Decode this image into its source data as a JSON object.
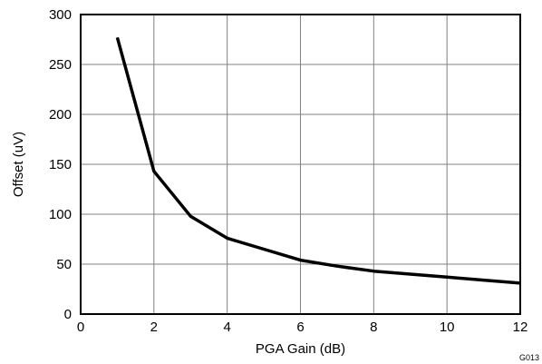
{
  "chart_data": {
    "type": "line",
    "title": "",
    "xlabel": "PGA Gain (dB)",
    "ylabel": "Offset (uV)",
    "xlim": [
      0,
      12
    ],
    "ylim": [
      0,
      300
    ],
    "x_ticks": [
      0,
      2,
      4,
      6,
      8,
      10,
      12
    ],
    "y_ticks": [
      0,
      50,
      100,
      150,
      200,
      250,
      300
    ],
    "grid": true,
    "series": [
      {
        "x": [
          1,
          2,
          3,
          4,
          5,
          6,
          7,
          8,
          9,
          10,
          11,
          12
        ],
        "y": [
          277,
          143,
          98,
          76,
          65,
          54,
          48,
          43,
          40,
          37,
          34,
          31
        ]
      }
    ],
    "colors": {
      "line": "#000000",
      "grid": "#808080",
      "frame": "#000000"
    }
  },
  "figure_code": "G013"
}
